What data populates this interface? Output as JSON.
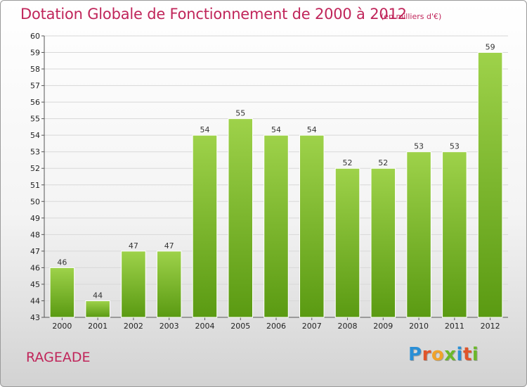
{
  "chart_data": {
    "type": "bar",
    "title": "Dotation Globale de Fonctionnement de 2000 à 2012",
    "subtitle": "(en milliers d'€)",
    "categories": [
      "2000",
      "2001",
      "2002",
      "2003",
      "2004",
      "2005",
      "2006",
      "2007",
      "2008",
      "2009",
      "2010",
      "2011",
      "2012"
    ],
    "values": [
      46,
      44,
      47,
      47,
      54,
      55,
      54,
      54,
      52,
      52,
      53,
      53,
      59
    ],
    "ylim": [
      43,
      60
    ],
    "yticks": [
      43,
      44,
      45,
      46,
      47,
      48,
      49,
      50,
      51,
      52,
      53,
      54,
      55,
      56,
      57,
      58,
      59,
      60
    ],
    "grid": true,
    "data_labels": true,
    "bar_color_top": "#9ed24a",
    "bar_color_bottom": "#5a9a12",
    "xlabel": "",
    "ylabel": ""
  },
  "footer": {
    "commune": "RAGEADE",
    "logo_letters": [
      "P",
      "r",
      "o",
      "x",
      "i",
      "t",
      "i"
    ],
    "logo_colors": [
      "#2a8fd6",
      "#e0542a",
      "#f0a32a",
      "#6bb82a",
      "#2a8fd6",
      "#e0542a",
      "#6bb82a"
    ]
  },
  "colors": {
    "title": "#c0255a",
    "grid": "#d8d8d8",
    "axis": "#555555"
  }
}
